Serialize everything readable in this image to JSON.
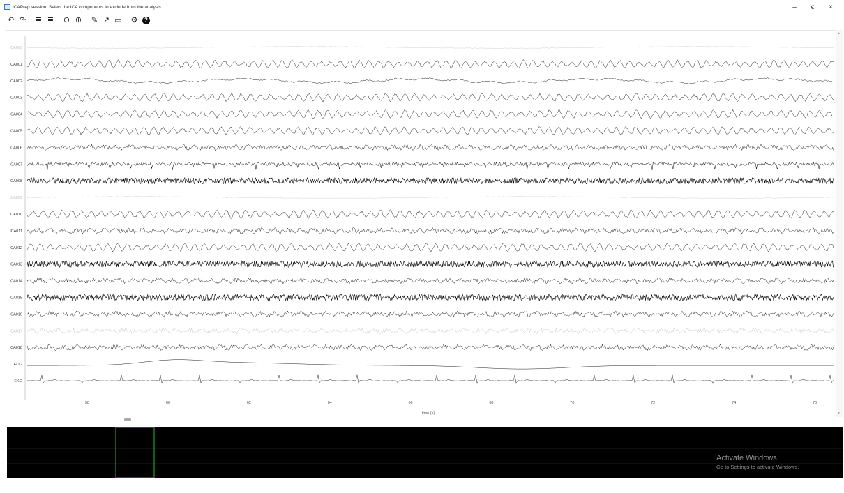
{
  "window": {
    "title": "ICAPrep session: Select the ICA components to exclude from the analysis.",
    "controls": {
      "minimize": "–",
      "maximize": "ϵ",
      "close": "×"
    }
  },
  "toolbar": [
    {
      "name": "undo-icon",
      "glyph": "↶"
    },
    {
      "name": "redo-icon",
      "glyph": "↷"
    },
    {
      "sep": true
    },
    {
      "name": "fewer-channels-icon",
      "glyph": "≣"
    },
    {
      "name": "more-channels-icon",
      "glyph": "≣"
    },
    {
      "sep": true
    },
    {
      "name": "zoom-out-icon",
      "glyph": "⊖"
    },
    {
      "name": "zoom-in-icon",
      "glyph": "⊕"
    },
    {
      "sep": true
    },
    {
      "name": "pen-icon",
      "glyph": "✎"
    },
    {
      "name": "arrow-icon",
      "glyph": "↗"
    },
    {
      "name": "annotation-icon",
      "glyph": "▭"
    },
    {
      "sep": true
    },
    {
      "name": "settings-icon",
      "glyph": "⚙"
    },
    {
      "name": "help-icon",
      "glyph": "?"
    }
  ],
  "channels": [
    {
      "label": "ICA000",
      "color": "#d0d0d0",
      "type": "flat"
    },
    {
      "label": "ICA001",
      "color": "#222222",
      "type": "alpha"
    },
    {
      "label": "ICA002",
      "color": "#222222",
      "type": "slow"
    },
    {
      "label": "ICA003",
      "color": "#222222",
      "type": "alpha"
    },
    {
      "label": "ICA004",
      "color": "#222222",
      "type": "alpha"
    },
    {
      "label": "ICA005",
      "color": "#222222",
      "type": "alpha"
    },
    {
      "label": "ICA006",
      "color": "#222222",
      "type": "noise"
    },
    {
      "label": "ICA007",
      "color": "#000000",
      "type": "spiky"
    },
    {
      "label": "ICA008",
      "color": "#000000",
      "type": "dense"
    },
    {
      "label": "ICA009",
      "color": "#d0d0d0",
      "type": "flat"
    },
    {
      "label": "ICA010",
      "color": "#222222",
      "type": "alpha"
    },
    {
      "label": "ICA011",
      "color": "#222222",
      "type": "noise"
    },
    {
      "label": "ICA012",
      "color": "#222222",
      "type": "alpha"
    },
    {
      "label": "ICA013",
      "color": "#000000",
      "type": "dense"
    },
    {
      "label": "ICA014",
      "color": "#222222",
      "type": "noise"
    },
    {
      "label": "ICA015",
      "color": "#000000",
      "type": "dense"
    },
    {
      "label": "ICA016",
      "color": "#222222",
      "type": "noise"
    },
    {
      "label": "ICA017",
      "color": "#c8c8c8",
      "type": "noise"
    },
    {
      "label": "ICA018",
      "color": "#222222",
      "type": "noise"
    },
    {
      "label": "EOG",
      "color": "#222222",
      "type": "eog"
    },
    {
      "label": "EKG",
      "color": "#222222",
      "type": "ekg"
    }
  ],
  "x_axis": {
    "label": "time (s)",
    "ticks": [
      "58",
      "60",
      "62",
      "64",
      "66",
      "68",
      "70",
      "72",
      "74",
      "76"
    ]
  },
  "watermark": {
    "title": "Activate Windows",
    "subtitle": "Go to Settings to activate Windows."
  },
  "colors": {
    "overview_bg": "#000000",
    "overview_window": "#1aa01a",
    "overview_grid": "#3a3a3a"
  }
}
